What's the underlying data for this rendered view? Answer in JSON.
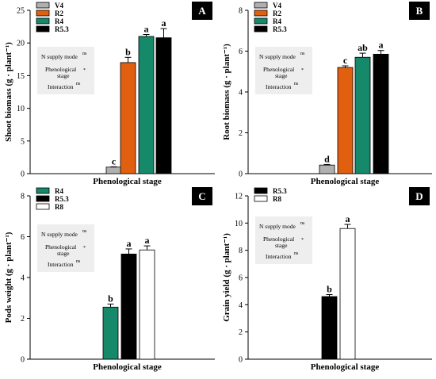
{
  "colors": {
    "V4": "#b0b0b0",
    "R2": "#e06010",
    "R4": "#16896a",
    "R5.3": "#000000",
    "R8": "#ffffff",
    "stat_box": "#eeeeee"
  },
  "chart_data": [
    {
      "panel": "A",
      "type": "bar",
      "xlabel": "Phenological stage",
      "ylabel": "Shoot biomass (g · plant⁻¹)",
      "ylim": [
        0,
        25
      ],
      "yticks": [
        0,
        5,
        10,
        15,
        20,
        25
      ],
      "legend_position": "top-left",
      "series": [
        {
          "name": "V4",
          "value": 1.0,
          "error": 0.05,
          "letter": "c"
        },
        {
          "name": "R2",
          "value": 17.0,
          "error": 0.8,
          "letter": "b"
        },
        {
          "name": "R4",
          "value": 21.0,
          "error": 0.3,
          "letter": "a"
        },
        {
          "name": "R5.3",
          "value": 20.8,
          "error": 1.4,
          "letter": "a"
        }
      ],
      "stats": [
        {
          "label": "N supply mode",
          "sup": "ns"
        },
        {
          "label": "Phenological",
          "label2": "stage",
          "sup": "*"
        },
        {
          "label": "Interaction",
          "sup": "ns"
        }
      ]
    },
    {
      "panel": "B",
      "type": "bar",
      "xlabel": "Phenological stage",
      "ylabel": "Root biomass (g · plant⁻¹)",
      "ylim": [
        0,
        8
      ],
      "yticks": [
        0,
        2,
        4,
        6,
        8
      ],
      "legend_position": "top-left",
      "series": [
        {
          "name": "V4",
          "value": 0.42,
          "error": 0.03,
          "letter": "d"
        },
        {
          "name": "R2",
          "value": 5.2,
          "error": 0.08,
          "letter": "c"
        },
        {
          "name": "R4",
          "value": 5.7,
          "error": 0.2,
          "letter": "ab"
        },
        {
          "name": "R5.3",
          "value": 5.85,
          "error": 0.18,
          "letter": "a"
        }
      ],
      "stats": [
        {
          "label": "N supply mode",
          "sup": "ns"
        },
        {
          "label": "Phenological",
          "label2": "stage",
          "sup": "*"
        },
        {
          "label": "Interaction",
          "sup": "ns"
        }
      ]
    },
    {
      "panel": "C",
      "type": "bar",
      "xlabel": "Phenological stage",
      "ylabel": "Pods weight (g · plant⁻¹)",
      "ylim": [
        0,
        8
      ],
      "yticks": [
        0,
        2,
        4,
        6,
        8
      ],
      "legend_position": "top-left",
      "series": [
        {
          "name": "R4",
          "value": 2.55,
          "error": 0.15,
          "letter": "b"
        },
        {
          "name": "R5.3",
          "value": 5.15,
          "error": 0.25,
          "letter": "a"
        },
        {
          "name": "R8",
          "value": 5.35,
          "error": 0.2,
          "letter": "a"
        }
      ],
      "stats": [
        {
          "label": "N supply mode",
          "sup": "ns"
        },
        {
          "label": "Phenological",
          "label2": "stage",
          "sup": "*"
        },
        {
          "label": "Interaction",
          "sup": "ns"
        }
      ]
    },
    {
      "panel": "D",
      "type": "bar",
      "xlabel": "Phenological stage",
      "ylabel": "Grain yield (g · plant⁻¹)",
      "ylim": [
        0,
        12
      ],
      "yticks": [
        0,
        2,
        4,
        6,
        8,
        10,
        12
      ],
      "legend_position": "top-left",
      "series": [
        {
          "name": "R5.3",
          "value": 4.6,
          "error": 0.15,
          "letter": "b"
        },
        {
          "name": "R8",
          "value": 9.6,
          "error": 0.3,
          "letter": "a"
        }
      ],
      "stats": [
        {
          "label": "N supply mode",
          "sup": "ns"
        },
        {
          "label": "Phenological",
          "label2": "stage",
          "sup": "*"
        },
        {
          "label": "Interaction",
          "sup": "ns"
        }
      ]
    }
  ]
}
